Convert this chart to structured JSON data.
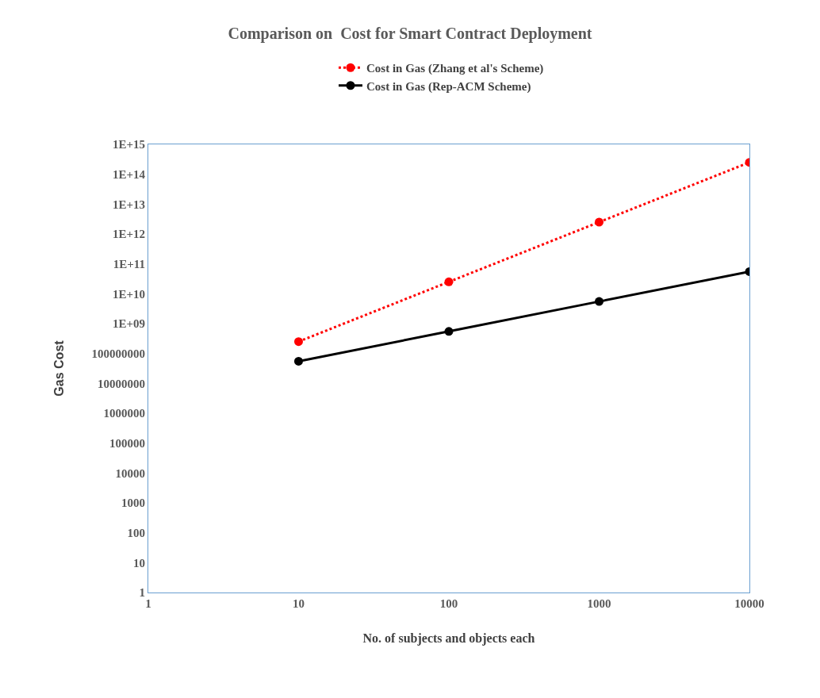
{
  "chart_data": {
    "type": "line",
    "title": "Comparison on  Cost for Smart Contract Deployment",
    "xlabel": "No. of subjects and objects each",
    "ylabel": "Gas Cost",
    "x": [
      10,
      100,
      1000,
      10000
    ],
    "series": [
      {
        "name": "Cost in Gas (Zhang et al's Scheme)",
        "color": "#ff0000",
        "line_style": "dotted",
        "values": [
          250000000.0,
          25000000000.0,
          2500000000000.0,
          250000000000000.0
        ]
      },
      {
        "name": "Cost in Gas (Rep-ACM Scheme)",
        "color": "#000000",
        "line_style": "solid",
        "values": [
          55000000.0,
          550000000.0,
          5500000000.0,
          55000000000.0
        ]
      }
    ],
    "log": "xy",
    "xlim": [
      1,
      10000
    ],
    "ylim": [
      1,
      1000000000000000.0
    ],
    "xticks": [
      1,
      10,
      100,
      1000,
      10000
    ],
    "yticks": [
      1,
      10,
      100,
      1000,
      10000,
      100000,
      1000000,
      10000000,
      100000000,
      {
        "value": 1000000000.0,
        "label": "1E+09"
      },
      {
        "value": 10000000000.0,
        "label": "1E+10"
      },
      {
        "value": 100000000000.0,
        "label": "1E+11"
      },
      {
        "value": 1000000000000.0,
        "label": "1E+12"
      },
      {
        "value": 10000000000000.0,
        "label": "1E+13"
      },
      {
        "value": 100000000000000.0,
        "label": "1E+14"
      },
      {
        "value": 1000000000000000.0,
        "label": "1E+15"
      }
    ],
    "grid": false,
    "legend": "top",
    "marker": "circle"
  }
}
